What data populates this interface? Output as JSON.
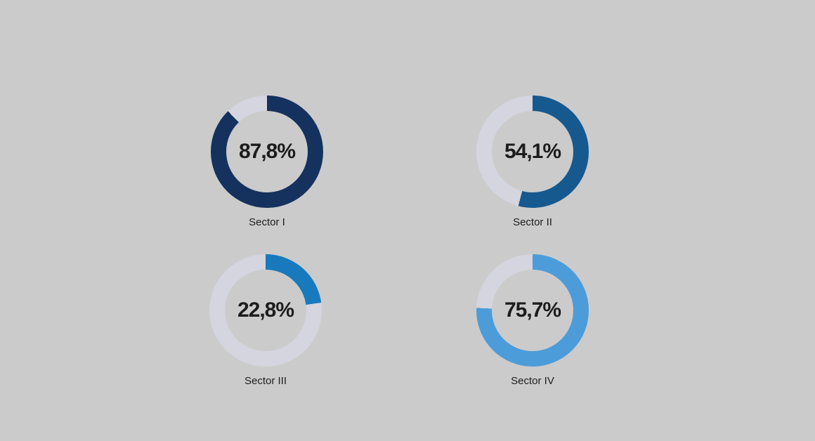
{
  "background_color": "#cbcbcb",
  "track_color": "#d4d5df",
  "value_text_color": "#1c1c1c",
  "label_text_color": "#1e1e1e",
  "chart_data": {
    "type": "pie",
    "subtype": "donut-gauge",
    "layout": {
      "grid": "2x2",
      "start_angle_deg": 0,
      "direction": "clockwise",
      "legend": "none"
    },
    "charts": [
      {
        "label": "Sector I",
        "value": 87.8,
        "display_value": "87,8%",
        "color": "#15315e"
      },
      {
        "label": "Sector II",
        "value": 54.1,
        "display_value": "54,1%",
        "color": "#16598f"
      },
      {
        "label": "Sector III",
        "value": 22.8,
        "display_value": "22,8%",
        "color": "#187abd"
      },
      {
        "label": "Sector IV",
        "value": 75.7,
        "display_value": "75,7%",
        "color": "#4c9cda"
      }
    ]
  }
}
